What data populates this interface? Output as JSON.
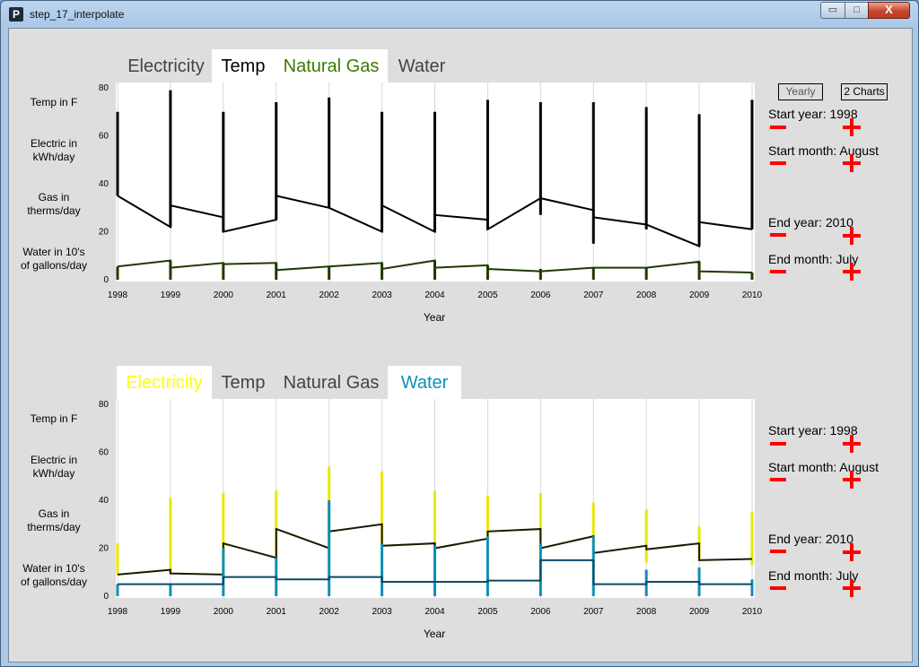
{
  "window": {
    "title": "step_17_interpolate",
    "icon": "P",
    "min": "▭",
    "max": "□",
    "close": "X"
  },
  "buttons": {
    "yearly": "Yearly",
    "two_charts": "2 Charts"
  },
  "colors": {
    "electricity": "#ffff00",
    "temp": "#000000",
    "gas": "#2b5a00",
    "water": "#0e8fb8",
    "gas_line": "#1f3a00",
    "water_line": "#0b4a66",
    "tab_inactive": "#444444"
  },
  "charts": [
    {
      "tabs": [
        {
          "label": "Electricity",
          "active": false,
          "color": "#444444"
        },
        {
          "label": "Temp",
          "active": true,
          "color": "#000000"
        },
        {
          "label": "Natural Gas",
          "active": true,
          "color": "#3a7a00"
        },
        {
          "label": "Water",
          "active": false,
          "color": "#444444"
        }
      ],
      "row_labels": [
        "Temp in F",
        "Electric in\nkWh/day",
        "Gas in\ntherms/day",
        "Water in 10's\nof gallons/day"
      ],
      "controls": {
        "start_year": "Start year: 1998",
        "start_month": "Start month: August",
        "end_year": "End year: 2010",
        "end_month": "End month: July"
      },
      "xlabel": "Year"
    },
    {
      "tabs": [
        {
          "label": "Electricity",
          "active": true,
          "color": "#ffff00"
        },
        {
          "label": "Temp",
          "active": false,
          "color": "#444444"
        },
        {
          "label": "Natural Gas",
          "active": false,
          "color": "#444444"
        },
        {
          "label": "Water",
          "active": true,
          "color": "#0e8fb8"
        }
      ],
      "row_labels": [
        "Temp in F",
        "Electric in\nkWh/day",
        "Gas in\ntherms/day",
        "Water in 10's\nof gallons/day"
      ],
      "controls": {
        "start_year": "Start year: 1998",
        "start_month": "Start month: August",
        "end_year": "End year: 2010",
        "end_month": "End month: July"
      },
      "xlabel": "Year"
    }
  ],
  "chart_data": [
    {
      "type": "line",
      "xlabel": "Year",
      "x_ticks": [
        "1998",
        "1999",
        "2000",
        "2001",
        "2002",
        "2003",
        "2004",
        "2005",
        "2006",
        "2007",
        "2008",
        "2009",
        "2010"
      ],
      "y_ticks": [
        0,
        20,
        40,
        60,
        80
      ],
      "ylim": [
        0,
        80
      ],
      "grid": "vertical",
      "series": [
        {
          "name": "Temp",
          "color": "#000000",
          "points": [
            [
              1998,
              35
            ],
            [
              1999,
              22
            ],
            [
              1999,
              31
            ],
            [
              2000,
              26
            ],
            [
              2000,
              20
            ],
            [
              2001,
              25
            ],
            [
              2001,
              35
            ],
            [
              2002,
              30
            ],
            [
              2003,
              20
            ],
            [
              2003,
              31
            ],
            [
              2004,
              20
            ],
            [
              2004,
              27
            ],
            [
              2005,
              25
            ],
            [
              2005,
              21
            ],
            [
              2006,
              34
            ],
            [
              2007,
              29
            ],
            [
              2007,
              26
            ],
            [
              2008,
              23
            ],
            [
              2009,
              14
            ],
            [
              2009,
              24
            ],
            [
              2010,
              21
            ]
          ],
          "bars": [
            [
              1998,
              35,
              70
            ],
            [
              1999,
              22,
              79
            ],
            [
              2000,
              20,
              70
            ],
            [
              2001,
              25,
              74
            ],
            [
              2002,
              30,
              76
            ],
            [
              2003,
              20,
              70
            ],
            [
              2004,
              20,
              70
            ],
            [
              2005,
              21,
              75
            ],
            [
              2006,
              27,
              74
            ],
            [
              2007,
              15,
              74
            ],
            [
              2008,
              21,
              72
            ],
            [
              2009,
              14,
              69
            ],
            [
              2010,
              21,
              75
            ]
          ]
        },
        {
          "name": "Natural Gas",
          "color": "#1f3a00",
          "points": [
            [
              1998,
              5.5
            ],
            [
              1999,
              8
            ],
            [
              1999,
              5
            ],
            [
              2000,
              7
            ],
            [
              2000,
              6.5
            ],
            [
              2001,
              7
            ],
            [
              2001,
              4
            ],
            [
              2002,
              5.5
            ],
            [
              2003,
              7
            ],
            [
              2003,
              4.5
            ],
            [
              2004,
              8
            ],
            [
              2004,
              5
            ],
            [
              2005,
              6
            ],
            [
              2005,
              4.5
            ],
            [
              2006,
              3.5
            ],
            [
              2007,
              5
            ],
            [
              2008,
              5
            ],
            [
              2009,
              7.5
            ],
            [
              2009,
              3.5
            ],
            [
              2010,
              3
            ]
          ],
          "bars": [
            [
              1998,
              0,
              5.5
            ],
            [
              1999,
              0,
              8
            ],
            [
              2000,
              0,
              7
            ],
            [
              2001,
              0,
              7
            ],
            [
              2002,
              0,
              5.5
            ],
            [
              2003,
              0,
              7
            ],
            [
              2004,
              0,
              8
            ],
            [
              2005,
              0,
              6
            ],
            [
              2006,
              0,
              4.5
            ],
            [
              2007,
              0,
              5
            ],
            [
              2008,
              0,
              5
            ],
            [
              2009,
              0,
              7.5
            ],
            [
              2010,
              0,
              3
            ]
          ]
        }
      ]
    },
    {
      "type": "line",
      "xlabel": "Year",
      "x_ticks": [
        "1998",
        "1999",
        "2000",
        "2001",
        "2002",
        "2003",
        "2004",
        "2005",
        "2006",
        "2007",
        "2008",
        "2009",
        "2010"
      ],
      "y_ticks": [
        0,
        20,
        40,
        60,
        80
      ],
      "ylim": [
        0,
        80
      ],
      "grid": "vertical",
      "series": [
        {
          "name": "Electricity",
          "color": "#1a1a00",
          "bar_color": "#e8e800",
          "points": [
            [
              1998,
              9
            ],
            [
              1999,
              11
            ],
            [
              1999,
              9.5
            ],
            [
              2000,
              9
            ],
            [
              2000,
              22
            ],
            [
              2001,
              16
            ],
            [
              2001,
              28
            ],
            [
              2002,
              20
            ],
            [
              2002,
              27
            ],
            [
              2003,
              30
            ],
            [
              2003,
              21
            ],
            [
              2004,
              22
            ],
            [
              2004,
              20
            ],
            [
              2005,
              24
            ],
            [
              2005,
              27
            ],
            [
              2006,
              28
            ],
            [
              2006,
              20
            ],
            [
              2007,
              25
            ],
            [
              2007,
              18
            ],
            [
              2008,
              21
            ],
            [
              2008,
              19.5
            ],
            [
              2009,
              22
            ],
            [
              2009,
              15
            ],
            [
              2010,
              15.5
            ]
          ],
          "bars": [
            [
              1998,
              9,
              22
            ],
            [
              1999,
              9.5,
              41
            ],
            [
              2000,
              9,
              43
            ],
            [
              2001,
              16,
              44
            ],
            [
              2002,
              20,
              54
            ],
            [
              2003,
              21,
              52
            ],
            [
              2004,
              20,
              44
            ],
            [
              2005,
              24,
              42
            ],
            [
              2006,
              20,
              43
            ],
            [
              2007,
              18,
              39
            ],
            [
              2008,
              14,
              36
            ],
            [
              2009,
              15,
              29
            ],
            [
              2010,
              13,
              35
            ]
          ]
        },
        {
          "name": "Water",
          "color": "#0b4a66",
          "bar_color": "#0e8fb8",
          "points": [
            [
              1998,
              5
            ],
            [
              1999,
              5
            ],
            [
              2000,
              5
            ],
            [
              2000,
              8
            ],
            [
              2001,
              8
            ],
            [
              2001,
              7
            ],
            [
              2002,
              7
            ],
            [
              2002,
              8
            ],
            [
              2003,
              8
            ],
            [
              2003,
              6
            ],
            [
              2004,
              6
            ],
            [
              2005,
              6
            ],
            [
              2005,
              6.5
            ],
            [
              2006,
              6.5
            ],
            [
              2006,
              15
            ],
            [
              2007,
              15
            ],
            [
              2007,
              5
            ],
            [
              2008,
              5
            ],
            [
              2008,
              6
            ],
            [
              2009,
              6
            ],
            [
              2009,
              5
            ],
            [
              2010,
              5
            ]
          ],
          "bars": [
            [
              1998,
              0,
              5
            ],
            [
              1999,
              0,
              5
            ],
            [
              2000,
              0,
              20
            ],
            [
              2001,
              0,
              16
            ],
            [
              2002,
              0,
              40
            ],
            [
              2003,
              0,
              22
            ],
            [
              2004,
              0,
              21
            ],
            [
              2005,
              0,
              25
            ],
            [
              2006,
              0,
              22
            ],
            [
              2007,
              0,
              25
            ],
            [
              2008,
              0,
              11
            ],
            [
              2009,
              0,
              12
            ],
            [
              2010,
              0,
              7
            ]
          ]
        }
      ]
    }
  ]
}
